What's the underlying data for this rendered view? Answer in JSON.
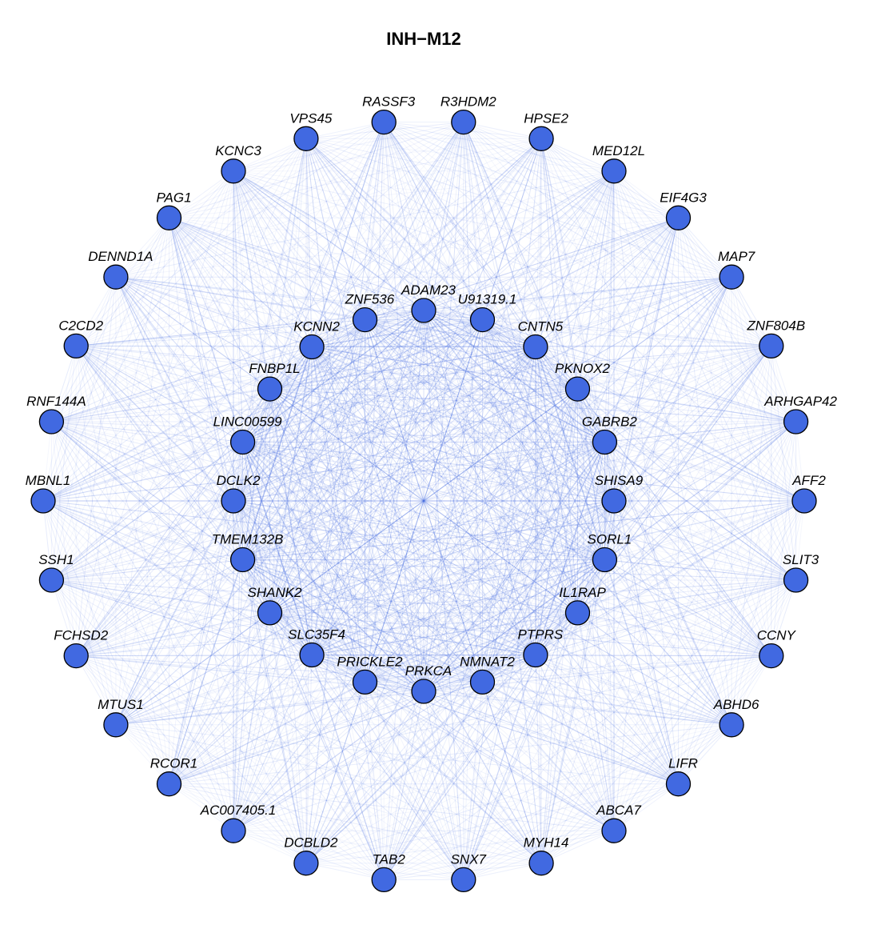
{
  "title": "INH−M12",
  "colors": {
    "node_fill": "#4169E1",
    "edge": "#4169E1",
    "label": "#000000"
  },
  "hub_genes": [
    "ADAM23",
    "U91319.1",
    "CNTN5",
    "PKNOX2",
    "GABRB2",
    "SHISA9",
    "SORL1",
    "IL1RAP",
    "PTPRS",
    "NMNAT2",
    "PRKCA",
    "PRICKLE2",
    "SLC35F4",
    "SHANK2",
    "TMEM132B",
    "DCLK2",
    "LINC00599",
    "FNBP1L",
    "KCNN2",
    "ZNF536"
  ],
  "outer_genes": [
    "R3HDM2",
    "HPSE2",
    "MED12L",
    "EIF4G3",
    "MAP7",
    "ZNF804B",
    "ARHGAP42",
    "AFF2",
    "SLIT3",
    "CCNY",
    "ABHD6",
    "LIFR",
    "ABCA7",
    "MYH14",
    "SNX7",
    "TAB2",
    "DCBLD2",
    "AC007405.1",
    "RCOR1",
    "MTUS1",
    "FCHSD2",
    "SSH1",
    "MBNL1",
    "RNF144A",
    "C2CD2",
    "DENND1A",
    "PAG1",
    "KCNC3",
    "VPS45",
    "RASSF3"
  ]
}
